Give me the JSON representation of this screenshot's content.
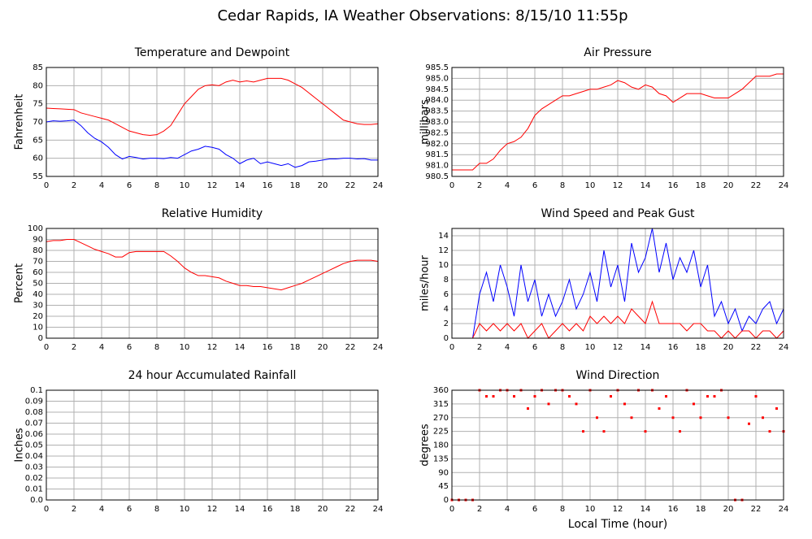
{
  "title": "Cedar Rapids, IA Weather Observations: 8/15/10 11:55p",
  "chart_data": [
    {
      "type": "line",
      "title": "Temperature and Dewpoint",
      "ylabel": "Fahrenheit",
      "x": [
        0,
        0.5,
        1,
        1.5,
        2,
        2.5,
        3,
        3.5,
        4,
        4.5,
        5,
        5.5,
        6,
        6.5,
        7,
        7.5,
        8,
        8.5,
        9,
        9.5,
        10,
        10.5,
        11,
        11.5,
        12,
        12.5,
        13,
        13.5,
        14,
        14.5,
        15,
        15.5,
        16,
        16.5,
        17,
        17.5,
        18,
        18.5,
        19,
        19.5,
        20,
        20.5,
        21,
        21.5,
        22,
        22.5,
        23,
        23.5,
        24
      ],
      "series": [
        {
          "color": "#ff0000",
          "values": [
            73.8,
            73.7,
            73.6,
            73.5,
            73.4,
            72.5,
            72,
            71.5,
            71,
            70.5,
            69.5,
            68.5,
            67.5,
            67,
            66.5,
            66.3,
            66.5,
            67.5,
            69,
            72,
            75,
            77,
            79,
            80,
            80.2,
            80,
            81,
            81.5,
            81,
            81.3,
            81,
            81.5,
            82,
            82,
            82,
            81.5,
            80.5,
            79.5,
            78,
            76.5,
            75,
            73.5,
            72,
            70.5,
            70,
            69.5,
            69.3,
            69.3,
            69.5
          ]
        },
        {
          "color": "#0000ff",
          "values": [
            70,
            70.3,
            70.2,
            70.3,
            70.5,
            69,
            67,
            65.5,
            64.5,
            63,
            61,
            59.8,
            60.5,
            60.2,
            59.8,
            60,
            60,
            59.9,
            60.2,
            60,
            61,
            62,
            62.5,
            63.3,
            63,
            62.5,
            61,
            60,
            58.5,
            59.5,
            60,
            58.5,
            59,
            58.5,
            58,
            58.5,
            57.5,
            58,
            59,
            59.2,
            59.5,
            59.8,
            59.8,
            60,
            60,
            59.8,
            59.9,
            59.5,
            59.5
          ]
        }
      ],
      "xlim": [
        0,
        24
      ],
      "xticks": [
        0,
        2,
        4,
        6,
        8,
        10,
        12,
        14,
        16,
        18,
        20,
        22,
        24
      ],
      "ylim": [
        55,
        85
      ],
      "yticks": [
        55,
        60,
        65,
        70,
        75,
        80,
        85
      ],
      "grid": true
    },
    {
      "type": "line",
      "title": "Air Pressure",
      "ylabel": "millibars",
      "x": [
        0,
        0.5,
        1,
        1.5,
        2,
        2.5,
        3,
        3.5,
        4,
        4.5,
        5,
        5.5,
        6,
        6.5,
        7,
        7.5,
        8,
        8.5,
        9,
        9.5,
        10,
        10.5,
        11,
        11.5,
        12,
        12.5,
        13,
        13.5,
        14,
        14.5,
        15,
        15.5,
        16,
        16.5,
        17,
        17.5,
        18,
        18.5,
        19,
        19.5,
        20,
        20.5,
        21,
        21.5,
        22,
        22.5,
        23,
        23.5,
        24
      ],
      "series": [
        {
          "color": "#ff0000",
          "values": [
            980.8,
            980.8,
            980.8,
            980.8,
            981.1,
            981.1,
            981.3,
            981.7,
            982.0,
            982.1,
            982.3,
            982.7,
            983.3,
            983.6,
            983.8,
            984.0,
            984.2,
            984.2,
            984.3,
            984.4,
            984.5,
            984.5,
            984.6,
            984.7,
            984.9,
            984.8,
            984.6,
            984.5,
            984.7,
            984.6,
            984.3,
            984.2,
            983.9,
            984.1,
            984.3,
            984.3,
            984.3,
            984.2,
            984.1,
            984.1,
            984.1,
            984.3,
            984.5,
            984.8,
            985.1,
            985.1,
            985.1,
            985.2,
            985.2
          ]
        }
      ],
      "xlim": [
        0,
        24
      ],
      "xticks": [
        0,
        2,
        4,
        6,
        8,
        10,
        12,
        14,
        16,
        18,
        20,
        22,
        24
      ],
      "ylim": [
        980.5,
        985.5
      ],
      "yticks": [
        980.5,
        {
          "value": 981,
          "label": "981.0"
        },
        981.5,
        {
          "value": 982,
          "label": "982.0"
        },
        982.5,
        {
          "value": 983,
          "label": "983.0"
        },
        983.5,
        {
          "value": 984,
          "label": "984.0"
        },
        984.5,
        {
          "value": 985,
          "label": "985.0"
        },
        985.5
      ],
      "grid": true
    },
    {
      "type": "line",
      "title": "Relative Humidity",
      "ylabel": "Percent",
      "x": [
        0,
        0.5,
        1,
        1.5,
        2,
        2.5,
        3,
        3.5,
        4,
        4.5,
        5,
        5.5,
        6,
        6.5,
        7,
        7.5,
        8,
        8.5,
        9,
        9.5,
        10,
        10.5,
        11,
        11.5,
        12,
        12.5,
        13,
        13.5,
        14,
        14.5,
        15,
        15.5,
        16,
        16.5,
        17,
        17.5,
        18,
        18.5,
        19,
        19.5,
        20,
        20.5,
        21,
        21.5,
        22,
        22.5,
        23,
        23.5,
        24
      ],
      "series": [
        {
          "color": "#ff0000",
          "values": [
            88,
            89,
            89,
            90,
            90,
            87,
            84,
            81,
            79,
            77,
            74,
            74,
            78,
            79,
            79,
            79,
            79,
            79,
            75,
            70,
            64,
            60,
            57,
            57,
            56,
            55,
            52,
            50,
            48,
            48,
            47,
            47,
            46,
            45,
            44,
            46,
            48,
            50,
            53,
            56,
            59,
            62,
            65,
            68,
            70,
            71,
            71,
            71,
            70
          ]
        }
      ],
      "xlim": [
        0,
        24
      ],
      "xticks": [
        0,
        2,
        4,
        6,
        8,
        10,
        12,
        14,
        16,
        18,
        20,
        22,
        24
      ],
      "ylim": [
        0,
        100
      ],
      "yticks": [
        0,
        10,
        20,
        30,
        40,
        50,
        60,
        70,
        80,
        90,
        100
      ],
      "grid": true
    },
    {
      "type": "line",
      "title": "Wind Speed and Peak Gust",
      "ylabel": "miles/hour",
      "x": [
        0,
        0.5,
        1,
        1.5,
        2,
        2.5,
        3,
        3.5,
        4,
        4.5,
        5,
        5.5,
        6,
        6.5,
        7,
        7.5,
        8,
        8.5,
        9,
        9.5,
        10,
        10.5,
        11,
        11.5,
        12,
        12.5,
        13,
        13.5,
        14,
        14.5,
        15,
        15.5,
        16,
        16.5,
        17,
        17.5,
        18,
        18.5,
        19,
        19.5,
        20,
        20.5,
        21,
        21.5,
        22,
        22.5,
        23,
        23.5,
        24
      ],
      "series": [
        {
          "color": "#0000ff",
          "values": [
            0,
            0,
            0,
            0,
            6,
            9,
            5,
            10,
            7,
            3,
            10,
            5,
            8,
            3,
            6,
            3,
            5,
            8,
            4,
            6,
            9,
            5,
            12,
            7,
            10,
            5,
            13,
            9,
            11,
            15,
            9,
            13,
            8,
            11,
            9,
            12,
            7,
            10,
            3,
            5,
            2,
            4,
            1,
            3,
            2,
            4,
            5,
            2,
            4
          ]
        },
        {
          "color": "#ff0000",
          "values": [
            0,
            0,
            0,
            0,
            2,
            1,
            2,
            1,
            2,
            1,
            2,
            0,
            1,
            2,
            0,
            1,
            2,
            1,
            2,
            1,
            3,
            2,
            3,
            2,
            3,
            2,
            4,
            3,
            2,
            5,
            2,
            2,
            2,
            2,
            1,
            2,
            2,
            1,
            1,
            0,
            1,
            0,
            1,
            1,
            0,
            1,
            1,
            0,
            1
          ]
        }
      ],
      "xlim": [
        0,
        24
      ],
      "xticks": [
        0,
        2,
        4,
        6,
        8,
        10,
        12,
        14,
        16,
        18,
        20,
        22,
        24
      ],
      "ylim": [
        0,
        15
      ],
      "yticks": [
        0,
        2,
        4,
        6,
        8,
        10,
        12,
        14
      ],
      "grid": true
    },
    {
      "type": "line",
      "title": "24 hour Accumulated Rainfall",
      "ylabel": "Inches",
      "x": [
        0,
        24
      ],
      "series": [
        {
          "color": "#ff0000",
          "values": [
            0,
            0
          ]
        }
      ],
      "xlim": [
        0,
        24
      ],
      "xticks": [
        0,
        2,
        4,
        6,
        8,
        10,
        12,
        14,
        16,
        18,
        20,
        22,
        24
      ],
      "ylim": [
        0,
        0.1
      ],
      "yticks": [
        {
          "value": 0,
          "label": "0.0"
        },
        0.01,
        0.02,
        0.03,
        0.04,
        0.05,
        0.06,
        0.07,
        0.08,
        0.09,
        0.1
      ],
      "grid": true
    },
    {
      "type": "scatter",
      "title": "Wind Direction",
      "ylabel": "degrees",
      "xlabel": "Local Time (hour)",
      "x": [
        0,
        0.5,
        1,
        1.5,
        2,
        2.5,
        3,
        3.5,
        4,
        4.5,
        5,
        5.5,
        6,
        6.5,
        7,
        7.5,
        8,
        8.5,
        9,
        9.5,
        10,
        10.5,
        11,
        11.5,
        12,
        12.5,
        13,
        13.5,
        14,
        14.5,
        15,
        15.5,
        16,
        16.5,
        17,
        17.5,
        18,
        18.5,
        19,
        19.5,
        20,
        20.5,
        21,
        21.5,
        22,
        22.5,
        23,
        23.5,
        24
      ],
      "series": [
        {
          "color": "#ff0000",
          "values": [
            0,
            0,
            0,
            0,
            360,
            340,
            340,
            360,
            360,
            340,
            360,
            300,
            340,
            360,
            315,
            360,
            360,
            340,
            315,
            225,
            360,
            270,
            225,
            340,
            360,
            315,
            270,
            360,
            225,
            360,
            300,
            340,
            270,
            225,
            360,
            315,
            270,
            340,
            340,
            360,
            270,
            0,
            0,
            250,
            340,
            270,
            225,
            300,
            225
          ]
        }
      ],
      "xlim": [
        0,
        24
      ],
      "xticks": [
        0,
        2,
        4,
        6,
        8,
        10,
        12,
        14,
        16,
        18,
        20,
        22,
        24
      ],
      "ylim": [
        0,
        360
      ],
      "yticks": [
        0,
        45,
        90,
        135,
        180,
        225,
        270,
        315,
        360
      ],
      "grid": true
    }
  ]
}
